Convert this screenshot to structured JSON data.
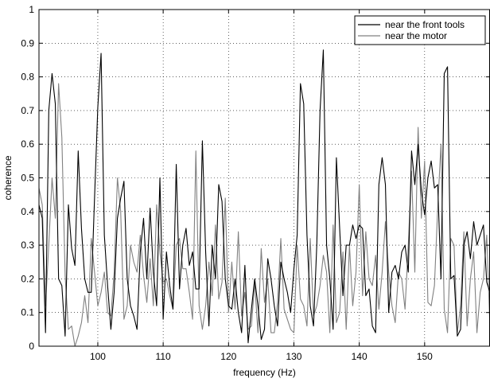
{
  "chart_data": {
    "type": "line",
    "title": "",
    "xlabel": "frequency (Hz)",
    "ylabel": "coherence",
    "xlim": [
      91,
      160
    ],
    "ylim": [
      0,
      1
    ],
    "grid": true,
    "legend_position": "top-right",
    "x_ticks": [
      100,
      110,
      120,
      130,
      140,
      150
    ],
    "y_ticks": [
      0,
      0.1,
      0.2,
      0.3,
      0.4,
      0.5,
      0.6,
      0.7,
      0.8,
      0.9,
      1
    ],
    "x_tick_labels": [
      "100",
      "110",
      "120",
      "130",
      "140",
      "150"
    ],
    "y_tick_labels": [
      "0",
      "0.1",
      "0.2",
      "0.3",
      "0.4",
      "0.5",
      "0.6",
      "0.7",
      "0.8",
      "0.9",
      "1"
    ],
    "series": [
      {
        "name": "near the front tools",
        "color": "#000000",
        "x": [
          91.0,
          91.5,
          92.0,
          92.5,
          93.0,
          93.5,
          94.0,
          94.5,
          95.0,
          95.5,
          96.0,
          96.5,
          97.0,
          97.5,
          98.0,
          98.5,
          99.0,
          99.5,
          100.0,
          100.5,
          101.0,
          101.5,
          102.0,
          102.5,
          103.0,
          103.5,
          104.0,
          104.5,
          105.0,
          105.5,
          106.0,
          106.5,
          107.0,
          107.5,
          108.0,
          108.5,
          109.0,
          109.5,
          110.0,
          110.5,
          111.0,
          111.5,
          112.0,
          112.5,
          113.0,
          113.5,
          114.0,
          114.5,
          115.0,
          115.5,
          116.0,
          116.5,
          117.0,
          117.5,
          118.0,
          118.5,
          119.0,
          119.5,
          120.0,
          120.5,
          121.0,
          121.5,
          122.0,
          122.5,
          123.0,
          123.5,
          124.0,
          124.5,
          125.0,
          125.5,
          126.0,
          126.5,
          127.0,
          127.5,
          128.0,
          128.5,
          129.0,
          129.5,
          130.0,
          130.5,
          131.0,
          131.5,
          132.0,
          132.5,
          133.0,
          133.5,
          134.0,
          134.5,
          135.0,
          135.5,
          136.0,
          136.5,
          137.0,
          137.5,
          138.0,
          138.5,
          139.0,
          139.5,
          140.0,
          140.5,
          141.0,
          141.5,
          142.0,
          142.5,
          143.0,
          143.5,
          144.0,
          144.5,
          145.0,
          145.5,
          146.0,
          146.5,
          147.0,
          147.5,
          148.0,
          148.5,
          149.0,
          149.5,
          150.0,
          150.5,
          151.0,
          151.5,
          152.0,
          152.5,
          153.0,
          153.5,
          154.0,
          154.5,
          155.0,
          155.5,
          156.0,
          156.5,
          157.0,
          157.5,
          158.0,
          158.5,
          159.0,
          159.5,
          160.0
        ],
        "y": [
          0.42,
          0.38,
          0.04,
          0.7,
          0.81,
          0.72,
          0.2,
          0.18,
          0.03,
          0.42,
          0.29,
          0.24,
          0.58,
          0.35,
          0.2,
          0.16,
          0.16,
          0.44,
          0.71,
          0.87,
          0.33,
          0.18,
          0.05,
          0.16,
          0.38,
          0.44,
          0.49,
          0.2,
          0.12,
          0.09,
          0.05,
          0.28,
          0.38,
          0.2,
          0.41,
          0.22,
          0.12,
          0.5,
          0.08,
          0.28,
          0.18,
          0.11,
          0.54,
          0.17,
          0.3,
          0.35,
          0.24,
          0.28,
          0.17,
          0.17,
          0.61,
          0.28,
          0.06,
          0.3,
          0.2,
          0.48,
          0.43,
          0.2,
          0.12,
          0.11,
          0.2,
          0.1,
          0.04,
          0.24,
          0.01,
          0.11,
          0.2,
          0.12,
          0.02,
          0.05,
          0.26,
          0.2,
          0.12,
          0.06,
          0.25,
          0.2,
          0.16,
          0.1,
          0.23,
          0.33,
          0.78,
          0.72,
          0.33,
          0.12,
          0.06,
          0.3,
          0.7,
          0.88,
          0.3,
          0.2,
          0.05,
          0.56,
          0.35,
          0.15,
          0.3,
          0.3,
          0.36,
          0.32,
          0.36,
          0.35,
          0.15,
          0.17,
          0.06,
          0.04,
          0.48,
          0.56,
          0.48,
          0.1,
          0.22,
          0.24,
          0.2,
          0.28,
          0.3,
          0.22,
          0.58,
          0.48,
          0.6,
          0.46,
          0.39,
          0.5,
          0.55,
          0.47,
          0.48,
          0.2,
          0.81,
          0.83,
          0.2,
          0.21,
          0.03,
          0.05,
          0.3,
          0.34,
          0.26,
          0.37,
          0.3,
          0.33,
          0.36,
          0.19,
          0.16
        ]
      },
      {
        "name": "near the motor",
        "color": "#808080",
        "x": [
          91.0,
          91.5,
          92.0,
          92.5,
          93.0,
          93.5,
          94.0,
          94.5,
          95.0,
          95.5,
          96.0,
          96.5,
          97.0,
          97.5,
          98.0,
          98.5,
          99.0,
          99.5,
          100.0,
          100.5,
          101.0,
          101.5,
          102.0,
          102.5,
          103.0,
          103.5,
          104.0,
          104.5,
          105.0,
          105.5,
          106.0,
          106.5,
          107.0,
          107.5,
          108.0,
          108.5,
          109.0,
          109.5,
          110.0,
          110.5,
          111.0,
          111.5,
          112.0,
          112.5,
          113.0,
          113.5,
          114.0,
          114.5,
          115.0,
          115.5,
          116.0,
          116.5,
          117.0,
          117.5,
          118.0,
          118.5,
          119.0,
          119.5,
          120.0,
          120.5,
          121.0,
          121.5,
          122.0,
          122.5,
          123.0,
          123.5,
          124.0,
          124.5,
          125.0,
          125.5,
          126.0,
          126.5,
          127.0,
          127.5,
          128.0,
          128.5,
          129.0,
          129.5,
          130.0,
          130.5,
          131.0,
          131.5,
          132.0,
          132.5,
          133.0,
          133.5,
          134.0,
          134.5,
          135.0,
          135.5,
          136.0,
          136.5,
          137.0,
          137.5,
          138.0,
          138.5,
          139.0,
          139.5,
          140.0,
          140.5,
          141.0,
          141.5,
          142.0,
          142.5,
          143.0,
          143.5,
          144.0,
          144.5,
          145.0,
          145.5,
          146.0,
          146.5,
          147.0,
          147.5,
          148.0,
          148.5,
          149.0,
          149.5,
          150.0,
          150.5,
          151.0,
          151.5,
          152.0,
          152.5,
          153.0,
          153.5,
          154.0,
          154.5,
          155.0,
          155.5,
          156.0,
          156.5,
          157.0,
          157.5,
          158.0,
          158.5,
          159.0,
          159.5,
          160.0
        ],
        "y": [
          0.47,
          0.42,
          0.12,
          0.3,
          0.5,
          0.38,
          0.78,
          0.62,
          0.21,
          0.05,
          0.06,
          0.0,
          0.03,
          0.07,
          0.15,
          0.07,
          0.32,
          0.22,
          0.12,
          0.16,
          0.22,
          0.1,
          0.09,
          0.22,
          0.5,
          0.4,
          0.08,
          0.12,
          0.3,
          0.25,
          0.22,
          0.33,
          0.21,
          0.13,
          0.26,
          0.12,
          0.42,
          0.28,
          0.19,
          0.2,
          0.15,
          0.11,
          0.3,
          0.32,
          0.23,
          0.23,
          0.16,
          0.08,
          0.58,
          0.12,
          0.05,
          0.12,
          0.25,
          0.15,
          0.36,
          0.14,
          0.19,
          0.44,
          0.1,
          0.25,
          0.11,
          0.34,
          0.09,
          0.16,
          0.05,
          0.06,
          0.19,
          0.04,
          0.29,
          0.13,
          0.2,
          0.04,
          0.04,
          0.13,
          0.32,
          0.11,
          0.08,
          0.05,
          0.04,
          0.3,
          0.14,
          0.12,
          0.06,
          0.32,
          0.09,
          0.12,
          0.18,
          0.27,
          0.22,
          0.04,
          0.36,
          0.07,
          0.1,
          0.28,
          0.05,
          0.3,
          0.12,
          0.22,
          0.48,
          0.15,
          0.34,
          0.2,
          0.18,
          0.27,
          0.11,
          0.22,
          0.37,
          0.22,
          0.12,
          0.07,
          0.22,
          0.2,
          0.11,
          0.3,
          0.52,
          0.22,
          0.65,
          0.38,
          0.55,
          0.13,
          0.12,
          0.18,
          0.41,
          0.6,
          0.11,
          0.04,
          0.32,
          0.3,
          0.04,
          0.12,
          0.34,
          0.06,
          0.2,
          0.28,
          0.04,
          0.16,
          0.2,
          0.33,
          0.05
        ]
      }
    ]
  }
}
